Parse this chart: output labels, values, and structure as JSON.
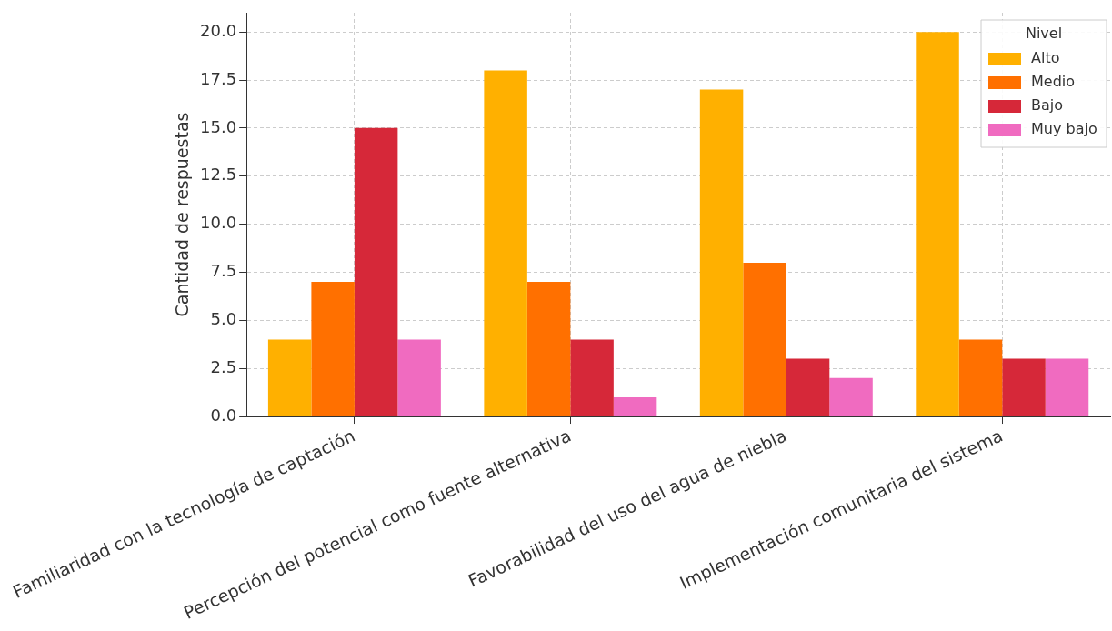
{
  "chart_data": {
    "type": "bar",
    "ylabel": "Cantidad de respuestas",
    "legend_title": "Nivel",
    "legend": "top right",
    "grid": true,
    "categories": [
      "Familiaridad con la tecnología de captación",
      "Percepción del potencial como fuente alternativa",
      "Favorabilidad del uso del agua de niebla",
      "Implementación comunitaria del sistema"
    ],
    "series": [
      {
        "name": "Alto",
        "color": "#ffb000",
        "values": [
          4,
          18,
          17,
          20
        ]
      },
      {
        "name": "Medio",
        "color": "#ff7000",
        "values": [
          7,
          7,
          8,
          4
        ]
      },
      {
        "name": "Bajo",
        "color": "#d62839",
        "values": [
          15,
          4,
          3,
          3
        ]
      },
      {
        "name": "Muy bajo",
        "color": "#f06bc0",
        "values": [
          4,
          1,
          2,
          3
        ]
      }
    ],
    "ylim": [
      0,
      21
    ],
    "yticks": [
      {
        "value": 0,
        "label": "0.0"
      },
      {
        "value": 2.5,
        "label": "2.5"
      },
      {
        "value": 5,
        "label": "5.0"
      },
      {
        "value": 7.5,
        "label": "7.5"
      },
      {
        "value": 10,
        "label": "10.0"
      },
      {
        "value": 12.5,
        "label": "12.5"
      },
      {
        "value": 15,
        "label": "15.0"
      },
      {
        "value": 17.5,
        "label": "17.5"
      },
      {
        "value": 20,
        "label": "20.0"
      }
    ]
  }
}
